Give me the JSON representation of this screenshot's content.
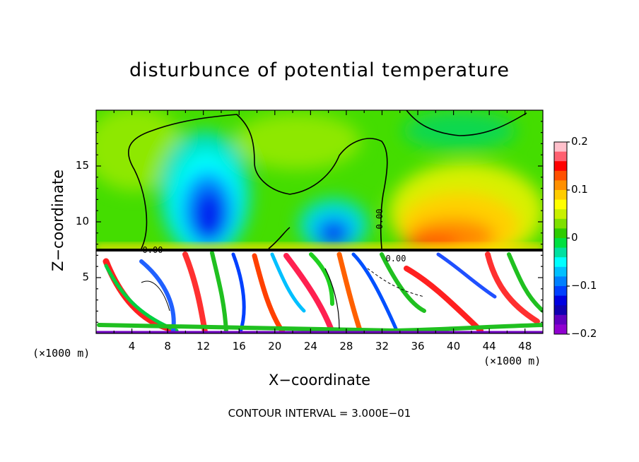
{
  "chart_data": {
    "type": "heatmap",
    "title": "disturbunce of potential temperature",
    "xlabel": "X−coordinate",
    "ylabel": "Z−coordinate",
    "x_unit_left": "(×1000 m)",
    "x_unit_right": "(×1000 m)",
    "footer": "CONTOUR INTERVAL = 3.000E−01",
    "x_ticks": [
      "4",
      "8",
      "12",
      "16",
      "20",
      "24",
      "28",
      "32",
      "36",
      "40",
      "44",
      "48"
    ],
    "x_tick_values": [
      4,
      8,
      12,
      16,
      20,
      24,
      28,
      32,
      36,
      40,
      44,
      48
    ],
    "y_ticks": [
      "5",
      "10",
      "15"
    ],
    "y_tick_values": [
      5,
      10,
      15
    ],
    "xlim": [
      0,
      50
    ],
    "ylim": [
      0,
      20
    ],
    "colorbar": {
      "ticks": [
        "0.2",
        "0.1",
        "0",
        "−0.1",
        "−0.2"
      ],
      "tick_values": [
        0.2,
        0.1,
        0,
        -0.1,
        -0.2
      ],
      "range": [
        -0.2,
        0.2
      ],
      "colors": [
        "#ffc0cb",
        "#ff6070",
        "#ff0000",
        "#ff5000",
        "#ff9000",
        "#ffcc00",
        "#ffff00",
        "#c8f000",
        "#7ee000",
        "#2ecc00",
        "#00e040",
        "#00e0a0",
        "#00ffff",
        "#00c0ff",
        "#0080ff",
        "#0040ff",
        "#0000e0",
        "#1000b0",
        "#6000c0",
        "#9000d0"
      ]
    },
    "contour_labels": [
      "0.00",
      "0.00",
      "0.00"
    ],
    "features": [
      {
        "sign": "negative",
        "x": 13,
        "z": 13
      },
      {
        "sign": "negative",
        "x": 26.5,
        "z": 10
      },
      {
        "sign": "positive",
        "x": 40,
        "z": 12
      }
    ]
  }
}
